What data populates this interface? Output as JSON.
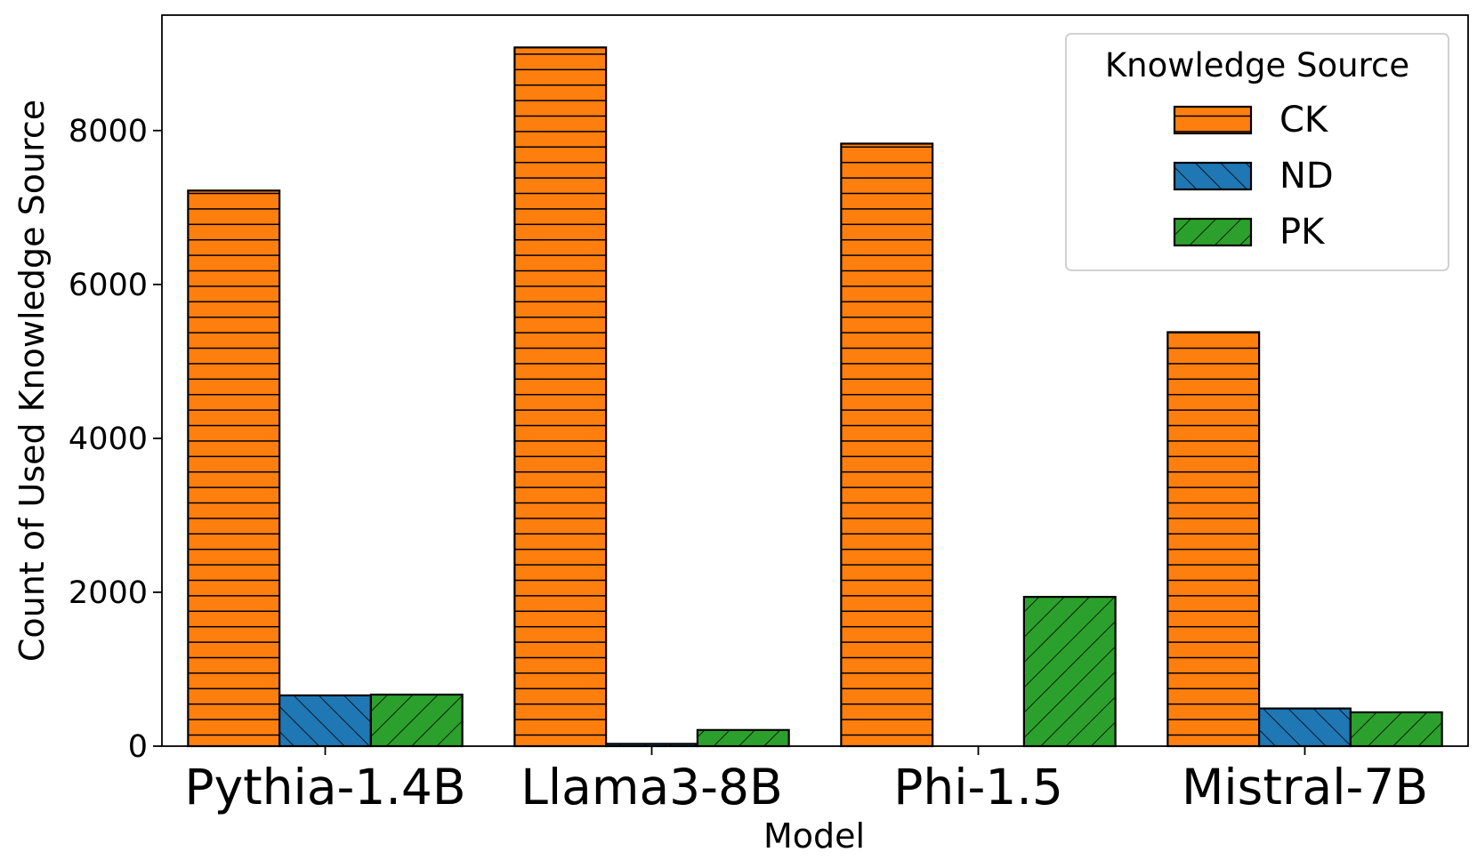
{
  "chart_data": {
    "type": "bar",
    "xlabel": "Model",
    "ylabel": "Count of Used Knowledge Source",
    "categories": [
      "Pythia-1.4B",
      "Llama3-8B",
      "Phi-1.5",
      "Mistral-7B"
    ],
    "ylim": [
      0,
      9500
    ],
    "yticks": [
      0,
      2000,
      4000,
      6000,
      8000
    ],
    "grid": false,
    "legend": {
      "title": "Knowledge Source",
      "placement": "top-right"
    },
    "series": [
      {
        "name": "CK",
        "values": [
          7220,
          9080,
          7830,
          5380
        ],
        "color": "#ff7f0e",
        "hatch": "horizontal"
      },
      {
        "name": "ND",
        "values": [
          660,
          30,
          0,
          490
        ],
        "color": "#1f77b4",
        "hatch": "backslash"
      },
      {
        "name": "PK",
        "values": [
          670,
          210,
          1940,
          440
        ],
        "color": "#2ca02c",
        "hatch": "slash"
      }
    ]
  }
}
